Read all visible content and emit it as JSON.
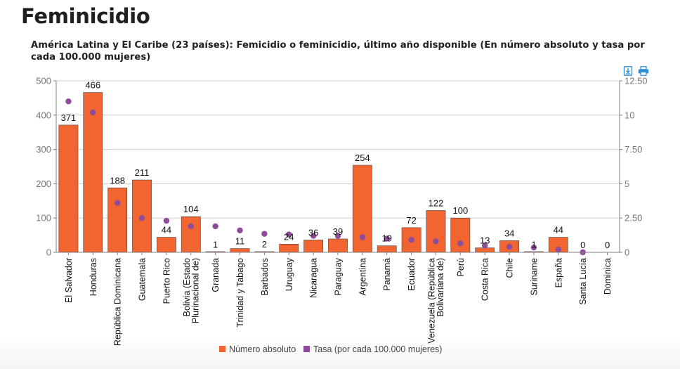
{
  "page": {
    "title": "Feminicidio",
    "subtitle": "América Latina y El Caribe (23 países): Femicidio o feminicidio, último año disponible (En número absoluto y tasa por cada 100.000 mujeres)"
  },
  "toolbar": {
    "download_icon": "download-icon",
    "print_icon": "print-icon"
  },
  "colors": {
    "bar": "#f26531",
    "dot": "#8e4b9a",
    "axis": "#808080",
    "grid": "#cfcfcf",
    "tool": "#2f8ed8"
  },
  "chart_data": {
    "type": "bar",
    "categories": [
      "El Salvador",
      "Honduras",
      "República Dominicana",
      "Guatemala",
      "Puerto Rico",
      "Bolivia (Estado Plurinacional de)",
      "Granada",
      "Trinidad y Tabago",
      "Barbados",
      "Uruguay",
      "Nicaragua",
      "Paraguay",
      "Argentina",
      "Panamá",
      "Ecuador",
      "Venezuela (República Bolivariana de)",
      "Perú",
      "Costa Rica",
      "Chile",
      "Suriname",
      "España",
      "Santa Lucía",
      "Dominica"
    ],
    "series": [
      {
        "name": "Número absoluto",
        "type": "bar",
        "axis": "left",
        "values": [
          371,
          466,
          188,
          211,
          44,
          104,
          1,
          11,
          2,
          24,
          36,
          39,
          254,
          19,
          72,
          122,
          100,
          13,
          34,
          1,
          44,
          0,
          0
        ]
      },
      {
        "name": "Tasa (por cada 100.000 mujeres)",
        "type": "scatter",
        "axis": "right",
        "values": [
          11.0,
          10.2,
          3.6,
          2.5,
          2.3,
          1.9,
          1.9,
          1.6,
          1.35,
          1.3,
          1.2,
          1.2,
          1.1,
          1.0,
          0.9,
          0.8,
          0.65,
          0.5,
          0.4,
          0.35,
          0.2,
          0.0,
          null
        ]
      }
    ],
    "ylim_left": [
      0,
      500
    ],
    "yticks_left": [
      "0",
      "100",
      "200",
      "300",
      "400",
      "500"
    ],
    "ylim_right": [
      0,
      12.5
    ],
    "yticks_right": [
      "0",
      "2.50",
      "5",
      "7.50",
      "10",
      "12.50"
    ],
    "grid": true,
    "legend_position": "bottom",
    "legend": [
      "Número absoluto",
      "Tasa (por cada 100.000 mujeres)"
    ]
  }
}
